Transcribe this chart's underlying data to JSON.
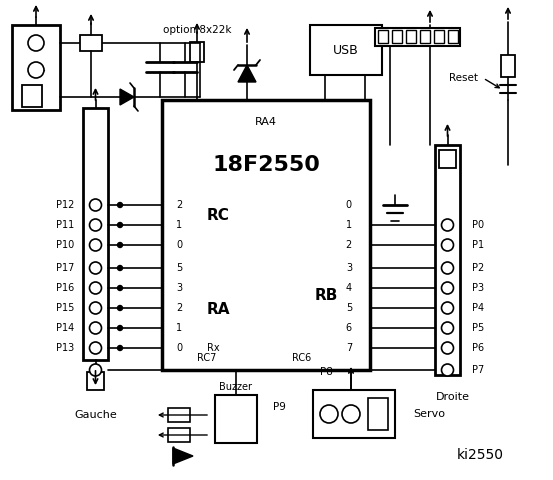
{
  "title": "ki2550",
  "bg_color": "#ffffff",
  "chip_label": "18F2550",
  "chip_sublabel": "RA4",
  "left_labels": [
    "P12",
    "P11",
    "P10",
    "P17",
    "P16",
    "P15",
    "P14",
    "P13"
  ],
  "right_labels": [
    "P0",
    "P1",
    "P2",
    "P3",
    "P4",
    "P5",
    "P6",
    "P7"
  ],
  "gauche_label": "Gauche",
  "droite_label": "Droite",
  "servo_label": "Servo",
  "buzzer_label": "Buzzer",
  "usb_label": "USB",
  "reset_label": "Reset",
  "option_label": "option 8x22k",
  "p8_label": "P8",
  "p9_label": "P9",
  "rc_pins": [
    "2",
    "1",
    "0"
  ],
  "ra_pins": [
    "5",
    "3",
    "2",
    "1",
    "0"
  ],
  "rb_pins": [
    "0",
    "1",
    "2",
    "3",
    "4",
    "5",
    "6",
    "7"
  ]
}
